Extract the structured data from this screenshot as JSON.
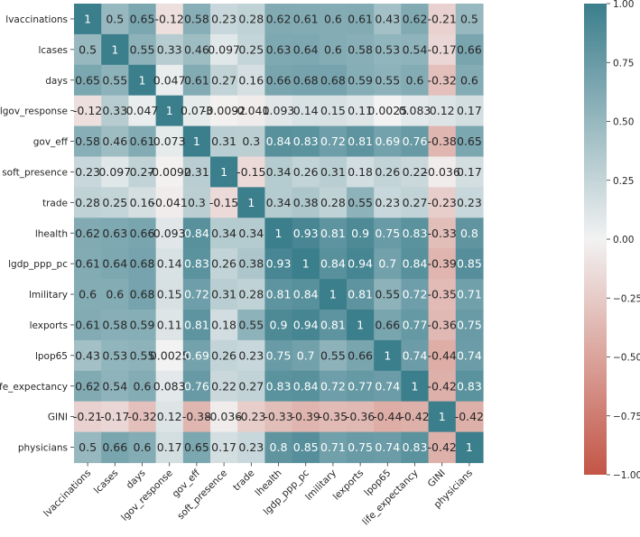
{
  "chart_data": {
    "type": "heatmap",
    "title": "",
    "xlabel": "",
    "ylabel": "",
    "variables": [
      "lvaccinations",
      "lcases",
      "days",
      "lgov_response",
      "gov_eff",
      "soft_presence",
      "trade",
      "lhealth",
      "lgdp_ppp_pc",
      "lmilitary",
      "lexports",
      "lpop65",
      "life_expectancy",
      "GINI",
      "physicians"
    ],
    "annotations": [
      [
        "1",
        "0.5",
        "0.65",
        "-0.12",
        "0.58",
        "0.23",
        "0.28",
        "0.62",
        "0.61",
        "0.6",
        "0.61",
        "0.43",
        "0.62",
        "-0.21",
        "0.5"
      ],
      [
        "0.5",
        "1",
        "0.55",
        "0.33",
        "0.46",
        "0.097",
        "0.25",
        "0.63",
        "0.64",
        "0.6",
        "0.58",
        "0.53",
        "0.54",
        "-0.17",
        "0.66"
      ],
      [
        "0.65",
        "0.55",
        "1",
        "0.047",
        "0.61",
        "0.27",
        "0.16",
        "0.66",
        "0.68",
        "0.68",
        "0.59",
        "0.55",
        "0.6",
        "-0.32",
        "0.6"
      ],
      [
        "-0.12",
        "0.33",
        "0.047",
        "1",
        "0.073",
        "-0.0092",
        "-0.041",
        "0.093",
        "0.14",
        "0.15",
        "0.11",
        "0.0025",
        "0.083",
        "0.12",
        "0.17"
      ],
      [
        "0.58",
        "0.46",
        "0.61",
        "0.073",
        "1",
        "0.31",
        "0.3",
        "0.84",
        "0.83",
        "0.72",
        "0.81",
        "0.69",
        "0.76",
        "-0.38",
        "0.65"
      ],
      [
        "0.23",
        "0.097",
        "0.27",
        "-0.0092",
        "0.31",
        "1",
        "-0.15",
        "0.34",
        "0.26",
        "0.31",
        "0.18",
        "0.26",
        "0.22",
        "-0.036",
        "0.17"
      ],
      [
        "0.28",
        "0.25",
        "0.16",
        "-0.041",
        "0.3",
        "-0.15",
        "1",
        "0.34",
        "0.38",
        "0.28",
        "0.55",
        "0.23",
        "0.27",
        "-0.23",
        "0.23"
      ],
      [
        "0.62",
        "0.63",
        "0.66",
        "0.093",
        "0.84",
        "0.34",
        "0.34",
        "1",
        "0.93",
        "0.81",
        "0.9",
        "0.75",
        "0.83",
        "-0.33",
        "0.8"
      ],
      [
        "0.61",
        "0.64",
        "0.68",
        "0.14",
        "0.83",
        "0.26",
        "0.38",
        "0.93",
        "1",
        "0.84",
        "0.94",
        "0.7",
        "0.84",
        "-0.39",
        "0.85"
      ],
      [
        "0.6",
        "0.6",
        "0.68",
        "0.15",
        "0.72",
        "0.31",
        "0.28",
        "0.81",
        "0.84",
        "1",
        "0.81",
        "0.55",
        "0.72",
        "-0.35",
        "0.71"
      ],
      [
        "0.61",
        "0.58",
        "0.59",
        "0.11",
        "0.81",
        "0.18",
        "0.55",
        "0.9",
        "0.94",
        "0.81",
        "1",
        "0.66",
        "0.77",
        "-0.36",
        "0.75"
      ],
      [
        "0.43",
        "0.53",
        "0.55",
        "0.0025",
        "0.69",
        "0.26",
        "0.23",
        "0.75",
        "0.7",
        "0.55",
        "0.66",
        "1",
        "0.74",
        "-0.44",
        "0.74"
      ],
      [
        "0.62",
        "0.54",
        "0.6",
        "0.083",
        "0.76",
        "0.22",
        "0.27",
        "0.83",
        "0.84",
        "0.72",
        "0.77",
        "0.74",
        "1",
        "-0.42",
        "0.83"
      ],
      [
        "-0.21",
        "-0.17",
        "-0.32",
        "0.12",
        "-0.38",
        "-0.036",
        "-0.23",
        "-0.33",
        "-0.39",
        "-0.35",
        "-0.36",
        "-0.44",
        "-0.42",
        "1",
        "-0.42"
      ],
      [
        "0.5",
        "0.66",
        "0.6",
        "0.17",
        "0.65",
        "0.17",
        "0.23",
        "0.8",
        "0.85",
        "0.71",
        "0.75",
        "0.74",
        "0.83",
        "-0.42",
        "1"
      ]
    ],
    "vmin": -1.0,
    "vmax": 1.0,
    "colorbar": {
      "ticks": [
        1.0,
        0.75,
        0.5,
        0.25,
        0.0,
        -0.25,
        -0.5,
        -0.75,
        -1.0
      ],
      "tick_labels": [
        "1.00",
        "0.75",
        "0.50",
        "0.25",
        "0.00",
        "−0.25",
        "−0.50",
        "−0.75",
        "−1.00"
      ],
      "location": "right"
    },
    "colors": {
      "negative": "#c35546",
      "center": "#f2f2f2",
      "positive": "#3b7e8c"
    }
  }
}
